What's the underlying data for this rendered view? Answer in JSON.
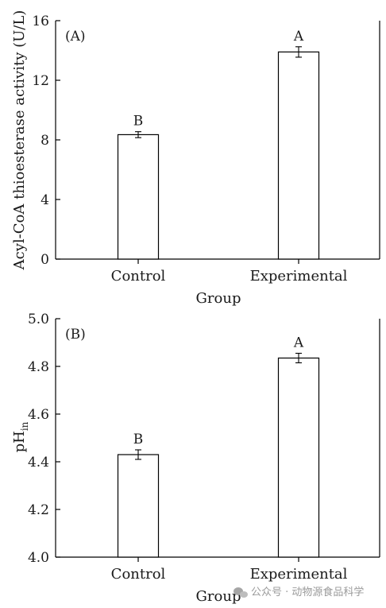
{
  "chart_data": [
    {
      "type": "bar",
      "panel_label": "(A)",
      "categories": [
        "Control",
        "Experimental"
      ],
      "values": [
        8.35,
        13.9
      ],
      "errors": [
        0.2,
        0.35
      ],
      "significance": [
        "B",
        "A"
      ],
      "ylabel": "Acyl-CoA thioesterase activity (U/L)",
      "xlabel": "Group",
      "ylim": [
        0,
        16
      ],
      "yticks": [
        0,
        4,
        8,
        12,
        16
      ],
      "grid": false
    },
    {
      "type": "bar",
      "panel_label": "(B)",
      "categories": [
        "Control",
        "Experimental"
      ],
      "values": [
        4.43,
        4.835
      ],
      "errors": [
        0.02,
        0.02
      ],
      "significance": [
        "B",
        "A"
      ],
      "ylabel_main": "pH",
      "ylabel_sub": "in",
      "xlabel": "Group",
      "ylim": [
        4.0,
        5.0
      ],
      "yticks": [
        "4.0",
        "4.2",
        "4.4",
        "4.6",
        "4.8",
        "5.0"
      ],
      "grid": false
    }
  ],
  "watermark": {
    "text": "公众号 · 动物源食品科学",
    "icon": "wechat-icon"
  }
}
